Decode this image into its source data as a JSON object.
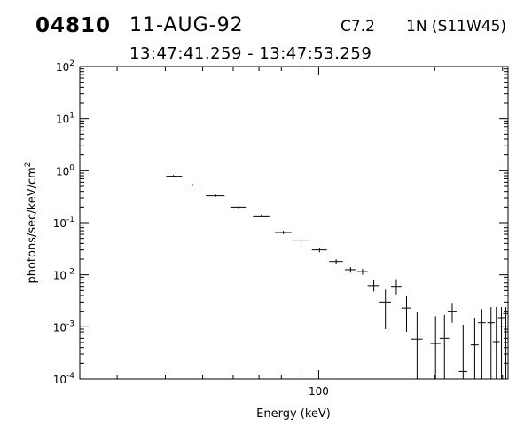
{
  "header": {
    "event_id": "04810",
    "date": "11-AUG-92",
    "goes_class": "C7.2",
    "location": "1N (S11W45)",
    "time_range": "13:47:41.259 - 13:47:53.259"
  },
  "chart_data": {
    "type": "scatter",
    "title": "",
    "xlabel": "Energy (keV)",
    "ylabel": "photons/sec/keV/cm",
    "ylabel_superscript": "2",
    "x_scale": "log",
    "y_scale": "log",
    "xlim": [
      24,
      310
    ],
    "ylim": [
      0.0001,
      100
    ],
    "x_tick_labels": [
      {
        "value": 100,
        "label": "100"
      }
    ],
    "y_tick_labels": [
      {
        "value": 0.0001,
        "base": "10",
        "exp": "-4"
      },
      {
        "value": 0.001,
        "base": "10",
        "exp": "-3"
      },
      {
        "value": 0.01,
        "base": "10",
        "exp": "-2"
      },
      {
        "value": 0.1,
        "base": "10",
        "exp": "-1"
      },
      {
        "value": 1,
        "base": "10",
        "exp": "0"
      },
      {
        "value": 10,
        "base": "10",
        "exp": "1"
      },
      {
        "value": 100,
        "base": "10",
        "exp": "2"
      }
    ],
    "grid": false,
    "points": [
      {
        "x": 42.0,
        "xlo": 40.2,
        "xhi": 44.2,
        "y": 0.78,
        "ylo": 0.78,
        "yhi": 0.78
      },
      {
        "x": 47.0,
        "xlo": 45.0,
        "xhi": 49.5,
        "y": 0.53,
        "ylo": 0.53,
        "yhi": 0.53
      },
      {
        "x": 54.0,
        "xlo": 51.0,
        "xhi": 57.0,
        "y": 0.33,
        "ylo": 0.33,
        "yhi": 0.33
      },
      {
        "x": 62.0,
        "xlo": 59.0,
        "xhi": 65.0,
        "y": 0.2,
        "ylo": 0.2,
        "yhi": 0.2
      },
      {
        "x": 71.0,
        "xlo": 67.5,
        "xhi": 74.5,
        "y": 0.135,
        "ylo": 0.135,
        "yhi": 0.135
      },
      {
        "x": 81.0,
        "xlo": 77.0,
        "xhi": 85.0,
        "y": 0.065,
        "ylo": 0.06,
        "yhi": 0.07
      },
      {
        "x": 90.0,
        "xlo": 86.0,
        "xhi": 94.0,
        "y": 0.045,
        "ylo": 0.041,
        "yhi": 0.049
      },
      {
        "x": 100.5,
        "xlo": 96.0,
        "xhi": 105.0,
        "y": 0.03,
        "ylo": 0.027,
        "yhi": 0.033
      },
      {
        "x": 111.0,
        "xlo": 106.5,
        "xhi": 115.5,
        "y": 0.018,
        "ylo": 0.016,
        "yhi": 0.02
      },
      {
        "x": 121.0,
        "xlo": 117.0,
        "xhi": 125.0,
        "y": 0.0125,
        "ylo": 0.011,
        "yhi": 0.014
      },
      {
        "x": 130.0,
        "xlo": 126.0,
        "xhi": 134.0,
        "y": 0.0115,
        "ylo": 0.01,
        "yhi": 0.013
      },
      {
        "x": 139.0,
        "xlo": 134.0,
        "xhi": 144.0,
        "y": 0.0062,
        "ylo": 0.0048,
        "yhi": 0.0078
      },
      {
        "x": 149.0,
        "xlo": 144.0,
        "xhi": 154.0,
        "y": 0.003,
        "ylo": 0.0009,
        "yhi": 0.0052
      },
      {
        "x": 159.0,
        "xlo": 154.0,
        "xhi": 164.0,
        "y": 0.006,
        "ylo": 0.0042,
        "yhi": 0.0082
      },
      {
        "x": 169.0,
        "xlo": 164.0,
        "xhi": 174.0,
        "y": 0.0023,
        "ylo": 0.0008,
        "yhi": 0.004
      },
      {
        "x": 180.0,
        "xlo": 174.0,
        "xhi": 186.0,
        "y": 0.00058,
        "ylo": 0.0001,
        "yhi": 0.0019
      },
      {
        "x": 201.0,
        "xlo": 195.0,
        "xhi": 207.0,
        "y": 0.00048,
        "ylo": 0.0001,
        "yhi": 0.0016
      },
      {
        "x": 212.0,
        "xlo": 206.0,
        "xhi": 218.0,
        "y": 0.0006,
        "ylo": 0.0001,
        "yhi": 0.0017
      },
      {
        "x": 222.0,
        "xlo": 216.0,
        "xhi": 228.0,
        "y": 0.002,
        "ylo": 0.0012,
        "yhi": 0.0029
      },
      {
        "x": 237.0,
        "xlo": 231.0,
        "xhi": 243.0,
        "y": 0.00014,
        "ylo": 0.0001,
        "yhi": 0.0011
      },
      {
        "x": 254.0,
        "xlo": 248.0,
        "xhi": 260.0,
        "y": 0.00045,
        "ylo": 0.0001,
        "yhi": 0.0015
      },
      {
        "x": 265.0,
        "xlo": 259.0,
        "xhi": 271.0,
        "y": 0.0012,
        "ylo": 0.0001,
        "yhi": 0.0022
      },
      {
        "x": 280.0,
        "xlo": 274.0,
        "xhi": 286.0,
        "y": 0.0012,
        "ylo": 0.0001,
        "yhi": 0.0024
      },
      {
        "x": 289.0,
        "xlo": 283.0,
        "xhi": 295.0,
        "y": 0.00052,
        "ylo": 0.0001,
        "yhi": 0.0024
      },
      {
        "x": 298.0,
        "xlo": 292.0,
        "xhi": 304.0,
        "y": 0.0015,
        "ylo": 0.0001,
        "yhi": 0.0024
      },
      {
        "x": 306.0,
        "xlo": 301.0,
        "xhi": 310.0,
        "y": 0.0018,
        "ylo": 0.0001,
        "yhi": 0.0024
      }
    ]
  }
}
